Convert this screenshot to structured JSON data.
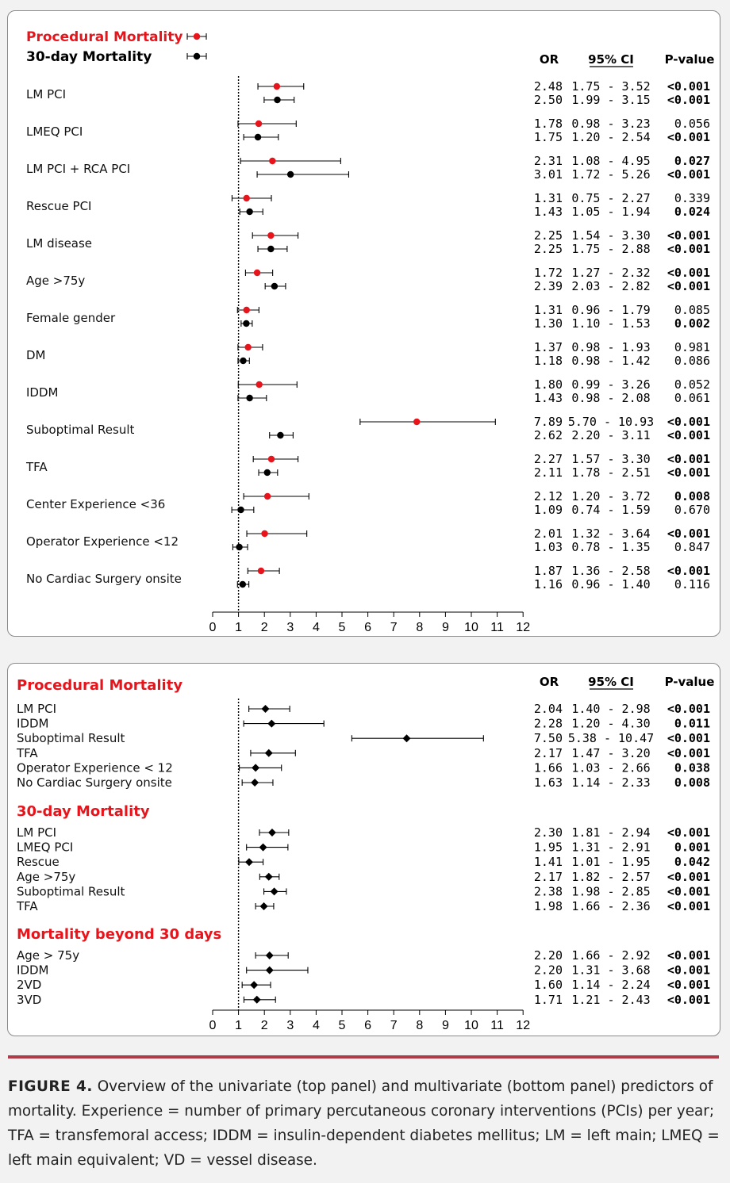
{
  "colors": {
    "procedural": "#e8141c",
    "thirty_day": "#000000",
    "caption_rule": "#b03a48"
  },
  "top_panel": {
    "legend": [
      {
        "label": "Procedural Mortality",
        "color": "#e8141c"
      },
      {
        "label": "30-day Mortality",
        "color": "#000000"
      }
    ],
    "headers": {
      "or": "OR",
      "ci": "95% CI",
      "p": "P-value"
    },
    "axis": {
      "min": 0,
      "max": 12,
      "ticks": [
        "0",
        "1",
        "2",
        "3",
        "4",
        "5",
        "6",
        "7",
        "8",
        "9",
        "10",
        "11",
        "12"
      ],
      "reference_line": 1
    },
    "rows": [
      {
        "label": "LM PCI",
        "procedural": {
          "or": 2.48,
          "lo": 1.75,
          "hi": 3.52,
          "or_text": "2.48",
          "ci_text": "1.75 - 3.52",
          "p": "<0.001",
          "bold": true
        },
        "thirty": {
          "or": 2.5,
          "lo": 1.99,
          "hi": 3.15,
          "or_text": "2.50",
          "ci_text": "1.99 - 3.15",
          "p": "<0.001",
          "bold": true
        }
      },
      {
        "label": "LMEQ PCI",
        "procedural": {
          "or": 1.78,
          "lo": 0.98,
          "hi": 3.23,
          "or_text": "1.78",
          "ci_text": "0.98 - 3.23",
          "p": "0.056",
          "bold": false
        },
        "thirty": {
          "or": 1.75,
          "lo": 1.2,
          "hi": 2.54,
          "or_text": "1.75",
          "ci_text": "1.20 - 2.54",
          "p": "<0.001",
          "bold": true
        }
      },
      {
        "label": "LM PCI + RCA PCI",
        "procedural": {
          "or": 2.31,
          "lo": 1.08,
          "hi": 4.95,
          "or_text": "2.31",
          "ci_text": "1.08 - 4.95",
          "p": "0.027",
          "bold": true
        },
        "thirty": {
          "or": 3.01,
          "lo": 1.72,
          "hi": 5.26,
          "or_text": "3.01",
          "ci_text": "1.72 - 5.26",
          "p": "<0.001",
          "bold": true
        }
      },
      {
        "label": "Rescue PCI",
        "procedural": {
          "or": 1.31,
          "lo": 0.75,
          "hi": 2.27,
          "or_text": "1.31",
          "ci_text": "0.75 - 2.27",
          "p": "0.339",
          "bold": false
        },
        "thirty": {
          "or": 1.43,
          "lo": 1.05,
          "hi": 1.94,
          "or_text": "1.43",
          "ci_text": "1.05 - 1.94",
          "p": "0.024",
          "bold": true
        }
      },
      {
        "label": "LM disease",
        "procedural": {
          "or": 2.25,
          "lo": 1.54,
          "hi": 3.3,
          "or_text": "2.25",
          "ci_text": "1.54 - 3.30",
          "p": "<0.001",
          "bold": true
        },
        "thirty": {
          "or": 2.25,
          "lo": 1.75,
          "hi": 2.88,
          "or_text": "2.25",
          "ci_text": "1.75 - 2.88",
          "p": "<0.001",
          "bold": true
        }
      },
      {
        "label": "Age >75y",
        "procedural": {
          "or": 1.72,
          "lo": 1.27,
          "hi": 2.32,
          "or_text": "1.72",
          "ci_text": "1.27 - 2.32",
          "p": "<0.001",
          "bold": true
        },
        "thirty": {
          "or": 2.39,
          "lo": 2.03,
          "hi": 2.82,
          "or_text": "2.39",
          "ci_text": "2.03 - 2.82",
          "p": "<0.001",
          "bold": true
        }
      },
      {
        "label": "Female gender",
        "procedural": {
          "or": 1.31,
          "lo": 0.96,
          "hi": 1.79,
          "or_text": "1.31",
          "ci_text": "0.96 - 1.79",
          "p": "0.085",
          "bold": false
        },
        "thirty": {
          "or": 1.3,
          "lo": 1.1,
          "hi": 1.53,
          "or_text": "1.30",
          "ci_text": "1.10 - 1.53",
          "p": "0.002",
          "bold": true
        }
      },
      {
        "label": "DM",
        "procedural": {
          "or": 1.37,
          "lo": 0.98,
          "hi": 1.93,
          "or_text": "1.37",
          "ci_text": "0.98 - 1.93",
          "p": "0.981",
          "bold": false
        },
        "thirty": {
          "or": 1.18,
          "lo": 0.98,
          "hi": 1.42,
          "or_text": "1.18",
          "ci_text": "0.98 - 1.42",
          "p": "0.086",
          "bold": false
        }
      },
      {
        "label": "IDDM",
        "procedural": {
          "or": 1.8,
          "lo": 0.99,
          "hi": 3.26,
          "or_text": "1.80",
          "ci_text": "0.99 - 3.26",
          "p": "0.052",
          "bold": false
        },
        "thirty": {
          "or": 1.43,
          "lo": 0.98,
          "hi": 2.08,
          "or_text": "1.43",
          "ci_text": "0.98 - 2.08",
          "p": "0.061",
          "bold": false
        }
      },
      {
        "label": "Suboptimal Result",
        "procedural": {
          "or": 7.89,
          "lo": 5.7,
          "hi": 10.93,
          "or_text": "7.89",
          "ci_text": "5.70 - 10.93",
          "p": "<0.001",
          "bold": true
        },
        "thirty": {
          "or": 2.62,
          "lo": 2.2,
          "hi": 3.11,
          "or_text": "2.62",
          "ci_text": "2.20 - 3.11",
          "p": "<0.001",
          "bold": true
        }
      },
      {
        "label": "TFA",
        "procedural": {
          "or": 2.27,
          "lo": 1.57,
          "hi": 3.3,
          "or_text": "2.27",
          "ci_text": "1.57 - 3.30",
          "p": "<0.001",
          "bold": true
        },
        "thirty": {
          "or": 2.11,
          "lo": 1.78,
          "hi": 2.51,
          "or_text": "2.11",
          "ci_text": "1.78 - 2.51",
          "p": "<0.001",
          "bold": true
        }
      },
      {
        "label": "Center Experience <36",
        "procedural": {
          "or": 2.12,
          "lo": 1.2,
          "hi": 3.72,
          "or_text": "2.12",
          "ci_text": "1.20 - 3.72",
          "p": "0.008",
          "bold": true
        },
        "thirty": {
          "or": 1.09,
          "lo": 0.74,
          "hi": 1.59,
          "or_text": "1.09",
          "ci_text": "0.74 - 1.59",
          "p": "0.670",
          "bold": false
        }
      },
      {
        "label": "Operator Experience <12",
        "procedural": {
          "or": 2.01,
          "lo": 1.32,
          "hi": 3.64,
          "or_text": "2.01",
          "ci_text": "1.32 - 3.64",
          "p": "<0.001",
          "bold": true
        },
        "thirty": {
          "or": 1.03,
          "lo": 0.78,
          "hi": 1.35,
          "or_text": "1.03",
          "ci_text": "0.78 - 1.35",
          "p": "0.847",
          "bold": false
        }
      },
      {
        "label": "No Cardiac Surgery onsite",
        "procedural": {
          "or": 1.87,
          "lo": 1.36,
          "hi": 2.58,
          "or_text": "1.87",
          "ci_text": "1.36 - 2.58",
          "p": "<0.001",
          "bold": true
        },
        "thirty": {
          "or": 1.16,
          "lo": 0.96,
          "hi": 1.4,
          "or_text": "1.16",
          "ci_text": "0.96 - 1.40",
          "p": "0.116",
          "bold": false
        }
      }
    ]
  },
  "bottom_panel": {
    "headers": {
      "or": "OR",
      "ci": "95% CI",
      "p": "P-value"
    },
    "axis": {
      "min": 0,
      "max": 12,
      "ticks": [
        "0",
        "1",
        "2",
        "3",
        "4",
        "5",
        "6",
        "7",
        "8",
        "9",
        "10",
        "11",
        "12"
      ],
      "reference_line": 1
    },
    "groups": [
      {
        "title": "Procedural Mortality",
        "rows": [
          {
            "label": "LM PCI",
            "or": 2.04,
            "lo": 1.4,
            "hi": 2.98,
            "or_text": "2.04",
            "ci_text": "1.40 - 2.98",
            "p": "<0.001"
          },
          {
            "label": "IDDM",
            "or": 2.28,
            "lo": 1.2,
            "hi": 4.3,
            "or_text": "2.28",
            "ci_text": "1.20 - 4.30",
            "p": "0.011"
          },
          {
            "label": "Suboptimal Result",
            "or": 7.5,
            "lo": 5.38,
            "hi": 10.47,
            "or_text": "7.50",
            "ci_text": "5.38 - 10.47",
            "p": "<0.001"
          },
          {
            "label": "TFA",
            "or": 2.17,
            "lo": 1.47,
            "hi": 3.2,
            "or_text": "2.17",
            "ci_text": "1.47 - 3.20",
            "p": "<0.001"
          },
          {
            "label": "Operator Experience < 12",
            "or": 1.66,
            "lo": 1.03,
            "hi": 2.66,
            "or_text": "1.66",
            "ci_text": "1.03 - 2.66",
            "p": "0.038"
          },
          {
            "label": "No Cardiac Surgery onsite",
            "or": 1.63,
            "lo": 1.14,
            "hi": 2.33,
            "or_text": "1.63",
            "ci_text": "1.14 - 2.33",
            "p": "0.008"
          }
        ]
      },
      {
        "title": "30-day Mortality",
        "rows": [
          {
            "label": "LM PCI",
            "or": 2.3,
            "lo": 1.81,
            "hi": 2.94,
            "or_text": "2.30",
            "ci_text": "1.81 - 2.94",
            "p": "<0.001"
          },
          {
            "label": "LMEQ PCI",
            "or": 1.95,
            "lo": 1.31,
            "hi": 2.91,
            "or_text": "1.95",
            "ci_text": "1.31 - 2.91",
            "p": "0.001"
          },
          {
            "label": "Rescue",
            "or": 1.41,
            "lo": 1.01,
            "hi": 1.95,
            "or_text": "1.41",
            "ci_text": "1.01 - 1.95",
            "p": "0.042"
          },
          {
            "label": "Age >75y",
            "or": 2.17,
            "lo": 1.82,
            "hi": 2.57,
            "or_text": "2.17",
            "ci_text": "1.82 - 2.57",
            "p": "<0.001"
          },
          {
            "label": "Suboptimal Result",
            "or": 2.38,
            "lo": 1.98,
            "hi": 2.85,
            "or_text": "2.38",
            "ci_text": "1.98 - 2.85",
            "p": "<0.001"
          },
          {
            "label": "TFA",
            "or": 1.98,
            "lo": 1.66,
            "hi": 2.36,
            "or_text": "1.98",
            "ci_text": "1.66 - 2.36",
            "p": "<0.001"
          }
        ]
      },
      {
        "title": "Mortality beyond 30 days",
        "rows": [
          {
            "label": "Age > 75y",
            "or": 2.2,
            "lo": 1.66,
            "hi": 2.92,
            "or_text": "2.20",
            "ci_text": "1.66 - 2.92",
            "p": "<0.001"
          },
          {
            "label": "IDDM",
            "or": 2.2,
            "lo": 1.31,
            "hi": 3.68,
            "or_text": "2.20",
            "ci_text": "1.31 - 3.68",
            "p": "<0.001"
          },
          {
            "label": "2VD",
            "or": 1.6,
            "lo": 1.14,
            "hi": 2.24,
            "or_text": "1.60",
            "ci_text": "1.14 - 2.24",
            "p": "<0.001"
          },
          {
            "label": "3VD",
            "or": 1.71,
            "lo": 1.21,
            "hi": 2.43,
            "or_text": "1.71",
            "ci_text": "1.21 - 2.43",
            "p": "<0.001"
          }
        ]
      }
    ]
  },
  "caption": {
    "label": "FIGURE 4.",
    "text": " Overview of the univariate (top panel) and multivariate (bottom panel) predictors of mortality. Experience = number of primary percutaneous coronary interventions (PCIs) per year; TFA = transfemoral access; IDDM = insulin-dependent diabetes mellitus; LM = left main; LMEQ = left main equivalent; VD = vessel disease."
  },
  "chart_data": [
    {
      "type": "scatter",
      "subtype": "forest",
      "x_scale": "linear",
      "xlim": [
        0,
        12
      ],
      "reference_line": 1,
      "categories": [
        "LM PCI",
        "LMEQ PCI",
        "LM PCI + RCA PCI",
        "Rescue PCI",
        "LM disease",
        "Age >75y",
        "Female gender",
        "DM",
        "IDDM",
        "Suboptimal Result",
        "TFA",
        "Center Experience <36",
        "Operator Experience <12",
        "No Cardiac Surgery onsite"
      ],
      "series": [
        {
          "name": "Procedural Mortality",
          "or": [
            2.48,
            1.78,
            2.31,
            1.31,
            2.25,
            1.72,
            1.31,
            1.37,
            1.8,
            7.89,
            2.27,
            2.12,
            2.01,
            1.87
          ],
          "lo": [
            1.75,
            0.98,
            1.08,
            0.75,
            1.54,
            1.27,
            0.96,
            0.98,
            0.99,
            5.7,
            1.57,
            1.2,
            1.32,
            1.36
          ],
          "hi": [
            3.52,
            3.23,
            4.95,
            2.27,
            3.3,
            2.32,
            1.79,
            1.93,
            3.26,
            10.93,
            3.3,
            3.72,
            3.64,
            2.58
          ]
        },
        {
          "name": "30-day Mortality",
          "or": [
            2.5,
            1.75,
            3.01,
            1.43,
            2.25,
            2.39,
            1.3,
            1.18,
            1.43,
            2.62,
            2.11,
            1.09,
            1.03,
            1.16
          ],
          "lo": [
            1.99,
            1.2,
            1.72,
            1.05,
            1.75,
            2.03,
            1.1,
            0.98,
            0.98,
            2.2,
            1.78,
            0.74,
            0.78,
            0.96
          ],
          "hi": [
            3.15,
            2.54,
            5.26,
            1.94,
            2.88,
            2.82,
            1.53,
            1.42,
            2.08,
            3.11,
            2.51,
            1.59,
            1.35,
            1.4
          ]
        }
      ],
      "legend": "top-left"
    },
    {
      "type": "scatter",
      "subtype": "forest",
      "x_scale": "linear",
      "xlim": [
        0,
        12
      ],
      "reference_line": 1,
      "note": "values mirrored in bottom_panel.groups"
    }
  ]
}
